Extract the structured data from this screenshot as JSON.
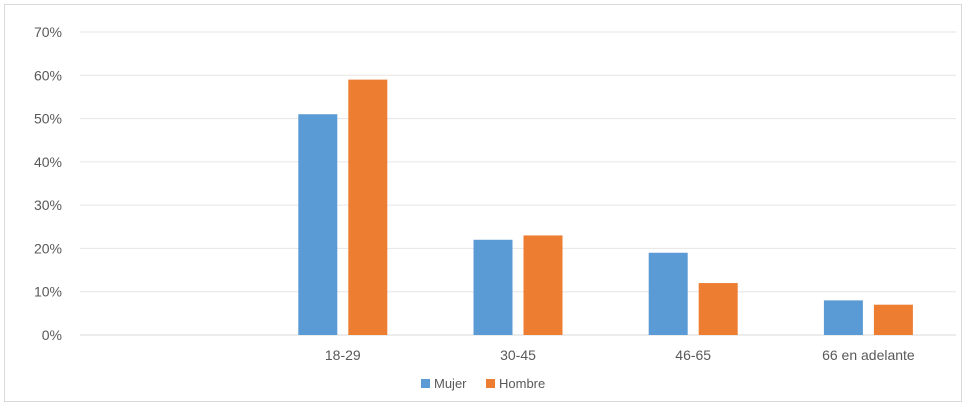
{
  "chart_data": {
    "type": "bar",
    "title": "",
    "xlabel": "",
    "ylabel": "",
    "categories": [
      "",
      "18-29",
      "30-45",
      "46-65",
      "66 en adelante"
    ],
    "series": [
      {
        "name": "Mujer",
        "values": [
          null,
          0.51,
          0.22,
          0.19,
          0.08
        ]
      },
      {
        "name": "Hombre",
        "values": [
          null,
          0.59,
          0.23,
          0.12,
          0.07
        ]
      }
    ],
    "ylim": [
      0,
      0.7
    ],
    "yticks": [
      0,
      0.1,
      0.2,
      0.3,
      0.4,
      0.5,
      0.6,
      0.7
    ],
    "ytick_labels": [
      "0%",
      "10%",
      "20%",
      "30%",
      "40%",
      "50%",
      "60%",
      "70%"
    ],
    "grid": true,
    "legend_position": "bottom",
    "colors": {
      "Mujer": "#5b9bd5",
      "Hombre": "#ed7d31"
    }
  }
}
